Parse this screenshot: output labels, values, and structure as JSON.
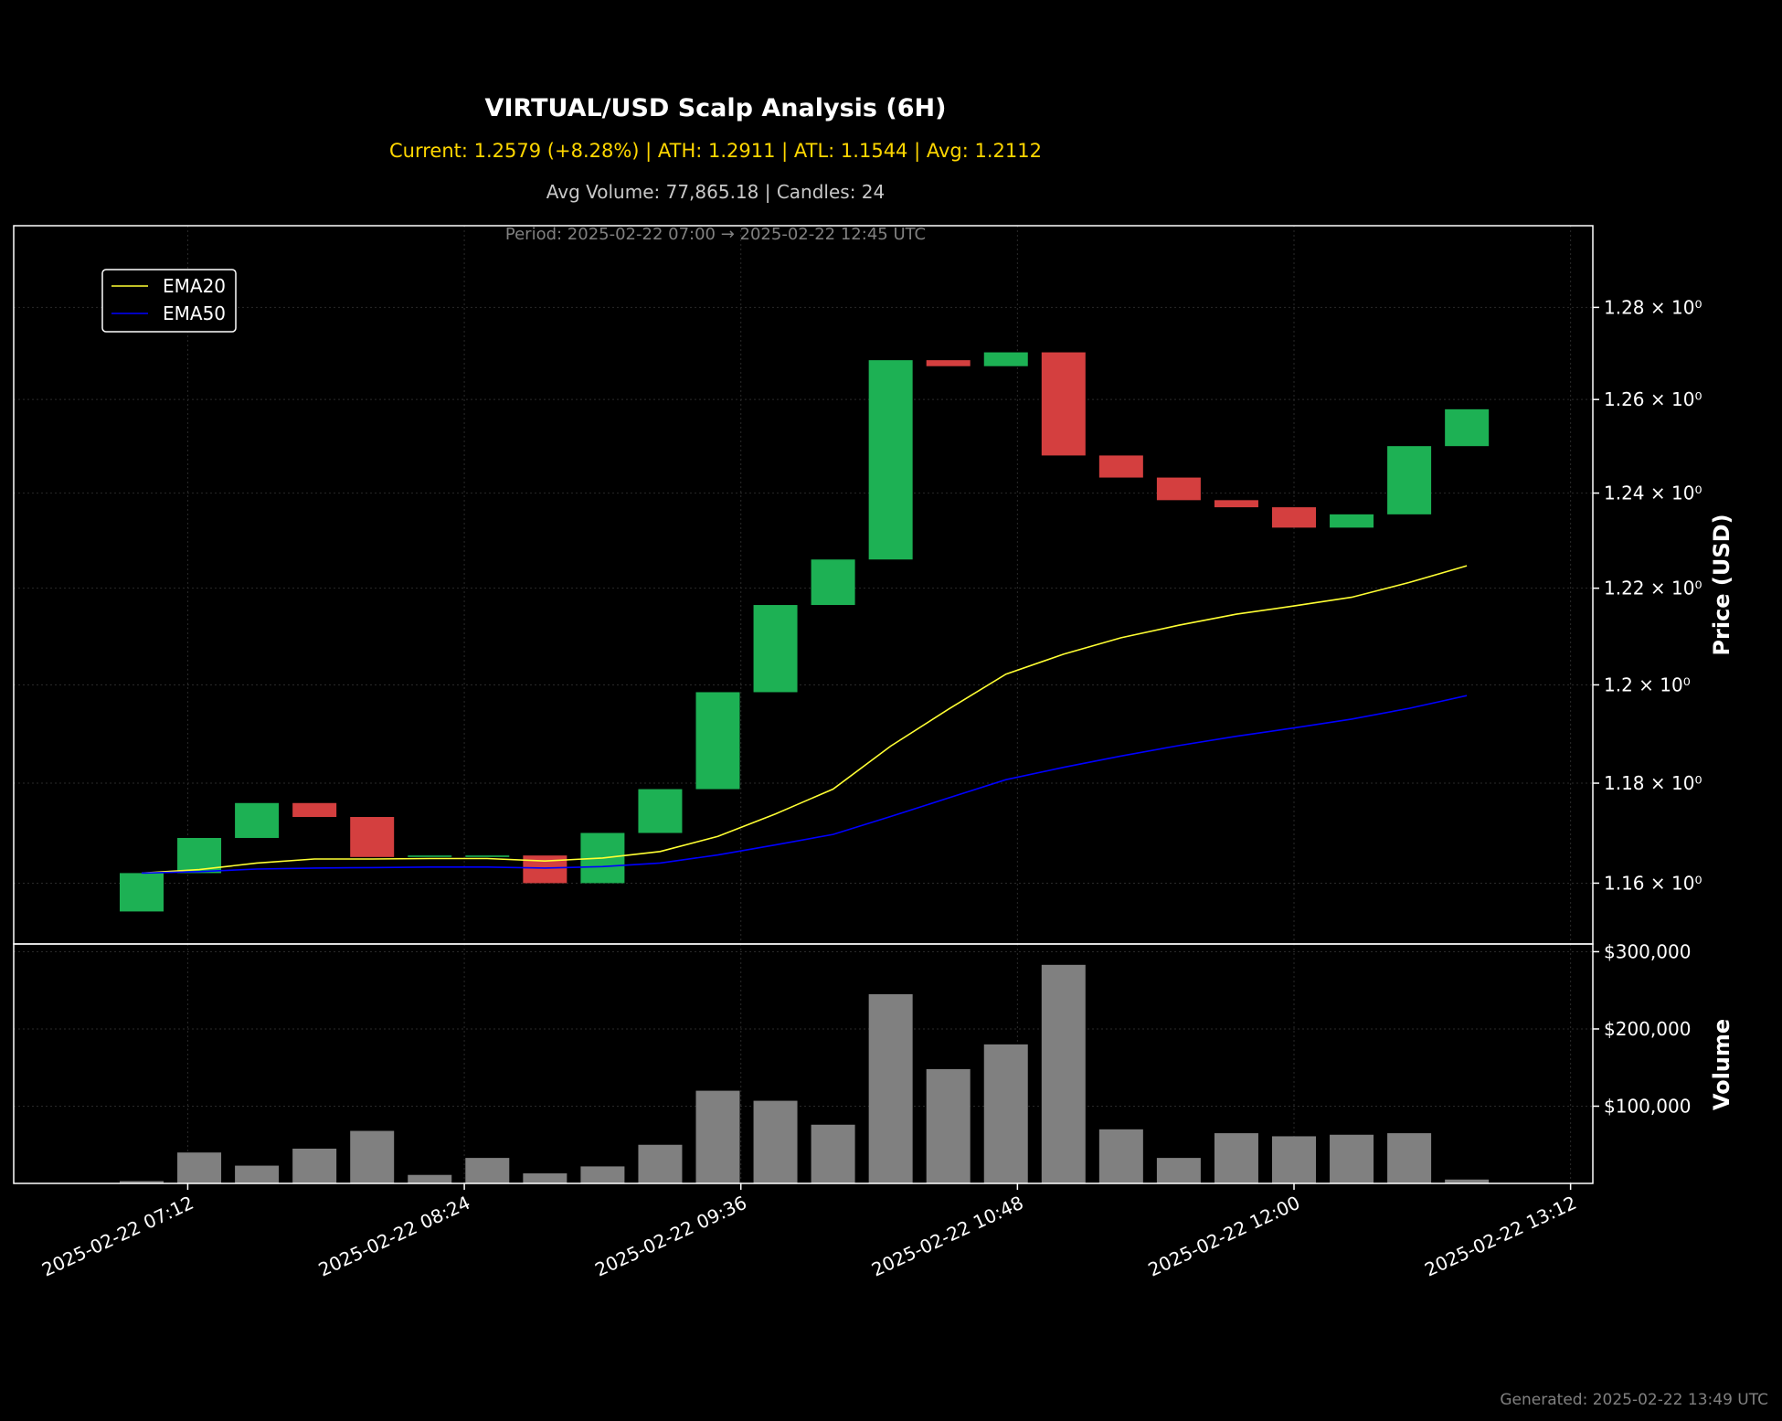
{
  "header": {
    "title": "VIRTUAL/USD Scalp Analysis (6H)",
    "subtitle": "Current: 1.2579 (+8.28%) | ATH: 1.2911 | ATL: 1.1544 | Avg: 1.2112",
    "info": "Avg Volume: 77,865.18 | Candles: 24",
    "period": "Period: 2025-02-22 07:00 → 2025-02-22 12:45 UTC"
  },
  "footer": "Generated: 2025-02-22 13:49 UTC",
  "colors": {
    "background": "#000000",
    "up": "#1db154",
    "down": "#d43f3f",
    "volume": "#808080",
    "ema20": "#ffff33",
    "ema50": "#0000ff",
    "grid": "#2a2a2a",
    "axis": "#ffffff"
  },
  "chart_data": {
    "type": "candlestick",
    "price_axis": {
      "label": "Price (USD)",
      "scale": "log",
      "ylim": [
        1.148,
        1.298
      ],
      "ticks": [
        1.16,
        1.18,
        1.2,
        1.22,
        1.24,
        1.26,
        1.28
      ],
      "tick_labels": [
        "1.16 × 10⁰",
        "1.18 × 10⁰",
        "1.2 × 10⁰",
        "1.22 × 10⁰",
        "1.24 × 10⁰",
        "1.26 × 10⁰",
        "1.28 × 10⁰"
      ]
    },
    "volume_axis": {
      "label": "Volume",
      "ylim": [
        0,
        310000
      ],
      "ticks": [
        100000,
        200000,
        300000
      ],
      "tick_labels": [
        "$100,000",
        "$200,000",
        "$300,000"
      ]
    },
    "x_axis": {
      "ticks": [
        "2025-02-22 07:12",
        "2025-02-22 08:24",
        "2025-02-22 09:36",
        "2025-02-22 10:48",
        "2025-02-22 12:00",
        "2025-02-22 13:12"
      ]
    },
    "legend": {
      "placement": "top-left",
      "entries": [
        {
          "name": "EMA20",
          "color": "#ffff33"
        },
        {
          "name": "EMA50",
          "color": "#0000ff"
        }
      ]
    },
    "grid": true,
    "candles": [
      {
        "time": "2025-02-22 07:00",
        "open": 1.1544,
        "close": 1.162,
        "volume": 3000
      },
      {
        "time": "2025-02-22 07:15",
        "open": 1.162,
        "close": 1.169,
        "volume": 40000
      },
      {
        "time": "2025-02-22 07:30",
        "open": 1.169,
        "close": 1.176,
        "volume": 23000
      },
      {
        "time": "2025-02-22 07:45",
        "open": 1.176,
        "close": 1.1732,
        "volume": 45000
      },
      {
        "time": "2025-02-22 08:00",
        "open": 1.1732,
        "close": 1.1652,
        "volume": 68000
      },
      {
        "time": "2025-02-22 08:15",
        "open": 1.1652,
        "close": 1.1655,
        "volume": 11000
      },
      {
        "time": "2025-02-22 08:30",
        "open": 1.1652,
        "close": 1.1655,
        "volume": 33000
      },
      {
        "time": "2025-02-22 08:45",
        "open": 1.1655,
        "close": 1.16,
        "volume": 13000
      },
      {
        "time": "2025-02-22 09:00",
        "open": 1.16,
        "close": 1.17,
        "volume": 22000
      },
      {
        "time": "2025-02-22 09:15",
        "open": 1.17,
        "close": 1.1788,
        "volume": 50000
      },
      {
        "time": "2025-02-22 09:30",
        "open": 1.1788,
        "close": 1.1985,
        "volume": 120000
      },
      {
        "time": "2025-02-22 09:45",
        "open": 1.1985,
        "close": 1.2165,
        "volume": 107000
      },
      {
        "time": "2025-02-22 10:00",
        "open": 1.2165,
        "close": 1.226,
        "volume": 76000
      },
      {
        "time": "2025-02-22 10:15",
        "open": 1.226,
        "close": 1.2685,
        "volume": 245000
      },
      {
        "time": "2025-02-22 10:30",
        "open": 1.2685,
        "close": 1.2672,
        "volume": 148000
      },
      {
        "time": "2025-02-22 10:45",
        "open": 1.2672,
        "close": 1.2702,
        "volume": 180000
      },
      {
        "time": "2025-02-22 11:00",
        "open": 1.2702,
        "close": 1.248,
        "volume": 283000
      },
      {
        "time": "2025-02-22 11:15",
        "open": 1.248,
        "close": 1.2433,
        "volume": 70000
      },
      {
        "time": "2025-02-22 11:30",
        "open": 1.2433,
        "close": 1.2385,
        "volume": 33000
      },
      {
        "time": "2025-02-22 11:45",
        "open": 1.2385,
        "close": 1.237,
        "volume": 65000
      },
      {
        "time": "2025-02-22 12:00",
        "open": 1.237,
        "close": 1.2327,
        "volume": 61000
      },
      {
        "time": "2025-02-22 12:15",
        "open": 1.2327,
        "close": 1.2355,
        "volume": 63000
      },
      {
        "time": "2025-02-22 12:30",
        "open": 1.2355,
        "close": 1.25,
        "volume": 65000
      },
      {
        "time": "2025-02-22 12:45",
        "open": 1.25,
        "close": 1.2579,
        "volume": 5000
      }
    ],
    "ema20": [
      1.162,
      1.1627,
      1.164,
      1.1648,
      1.1648,
      1.1649,
      1.1649,
      1.1644,
      1.165,
      1.1663,
      1.1693,
      1.1738,
      1.1788,
      1.1875,
      1.195,
      1.2022,
      1.2063,
      1.2097,
      1.2123,
      1.2146,
      1.2163,
      1.2181,
      1.2212,
      1.2247
    ],
    "ema50": [
      1.162,
      1.1623,
      1.1628,
      1.163,
      1.1631,
      1.1632,
      1.1632,
      1.163,
      1.1633,
      1.164,
      1.1656,
      1.1676,
      1.1697,
      1.1733,
      1.177,
      1.1807,
      1.1832,
      1.1855,
      1.1876,
      1.1895,
      1.1912,
      1.193,
      1.1952,
      1.1978
    ]
  }
}
